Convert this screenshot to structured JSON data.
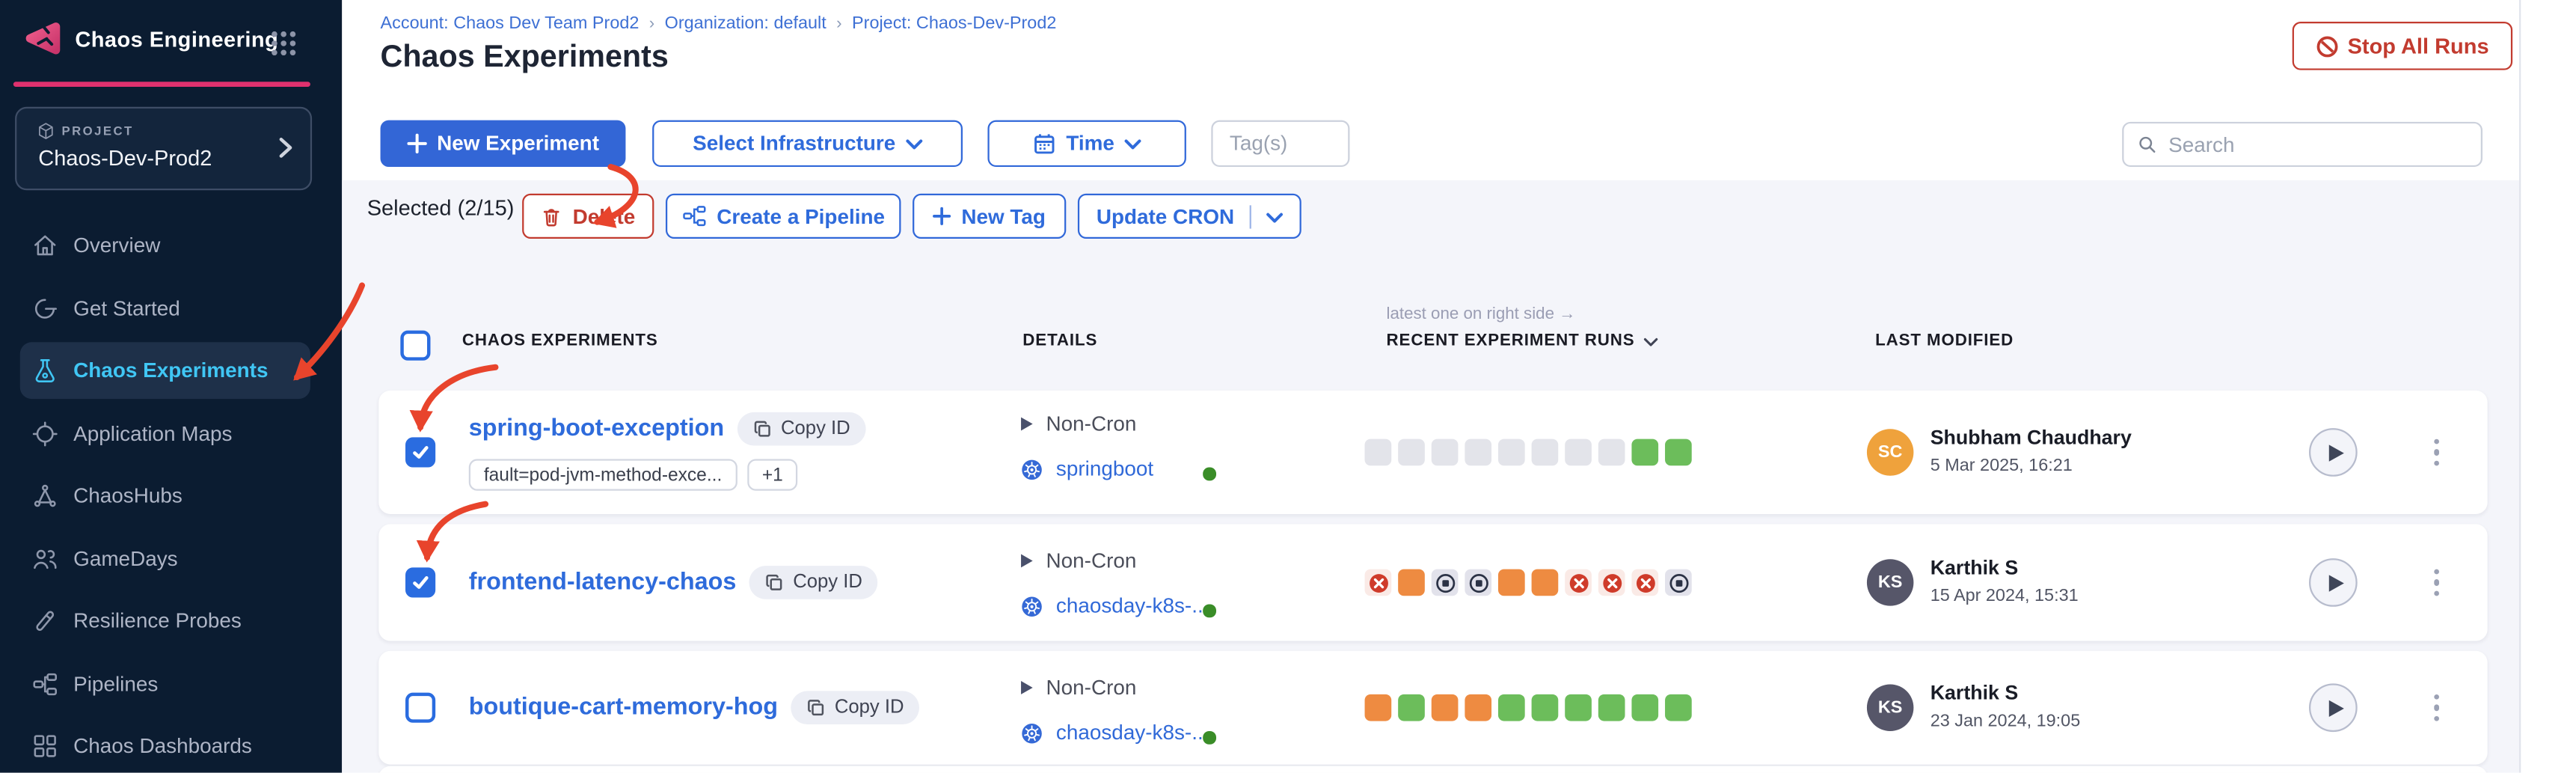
{
  "colors": {
    "accent": "#3366d6",
    "danger": "#c23b2f",
    "pink": "#e0316e",
    "run-green": "#6cbd5b",
    "run-orange": "#ee8b41",
    "annotation": "#e8442c"
  },
  "brand": {
    "app_name": "Chaos Engineering",
    "project_label": "PROJECT",
    "project_name": "Chaos-Dev-Prod2"
  },
  "sidebar": {
    "items": [
      {
        "label": "Overview"
      },
      {
        "label": "Get Started"
      },
      {
        "label": "Chaos Experiments",
        "selected": true
      },
      {
        "label": "Application Maps"
      },
      {
        "label": "ChaosHubs"
      },
      {
        "label": "GameDays"
      },
      {
        "label": "Resilience Probes"
      },
      {
        "label": "Pipelines"
      },
      {
        "label": "Chaos Dashboards"
      }
    ]
  },
  "breadcrumb": {
    "sep": "›",
    "parts": [
      {
        "label": "Account: Chaos Dev Team Prod2"
      },
      {
        "label": "Organization: default"
      },
      {
        "label": "Project: Chaos-Dev-Prod2"
      }
    ]
  },
  "header": {
    "title": "Chaos Experiments",
    "stop_all_label": "Stop All Runs"
  },
  "toolbar": {
    "new_experiment": "New Experiment",
    "select_infrastructure": "Select Infrastructure",
    "time": "Time",
    "tags_placeholder": "Tag(s)",
    "search_placeholder": "Search"
  },
  "selection": {
    "label": "Selected (2/15)",
    "delete": "Delete",
    "create_pipeline": "Create a Pipeline",
    "new_tag": "New Tag",
    "update_cron": "Update CRON"
  },
  "table": {
    "note": "latest one on right side →",
    "col_experiments": "CHAOS EXPERIMENTS",
    "col_details": "DETAILS",
    "col_runs": "RECENT EXPERIMENT RUNS",
    "col_modified": "LAST MODIFIED"
  },
  "rows": [
    {
      "name": "spring-boot-exception",
      "copy_label": "Copy ID",
      "checked": true,
      "tags": [
        "fault=pod-jvm-method-exce...",
        "+1"
      ],
      "cron": "Non-Cron",
      "infra": "springboot",
      "runs": [
        "gray",
        "gray",
        "gray",
        "gray",
        "gray",
        "gray",
        "gray",
        "gray",
        "green",
        "green"
      ],
      "avatar": "SC",
      "avatar_color": "#efa23c",
      "user": "Shubham Chaudhary",
      "date": "5 Mar 2025, 16:21"
    },
    {
      "name": "frontend-latency-chaos",
      "copy_label": "Copy ID",
      "checked": true,
      "tags": [],
      "cron": "Non-Cron",
      "infra": "chaosday-k8s-...",
      "runs": [
        "failed",
        "orange",
        "stopped",
        "stopped",
        "orange",
        "orange",
        "failed",
        "failed",
        "failed",
        "stopped"
      ],
      "avatar": "KS",
      "avatar_color": "#565669",
      "user": "Karthik S",
      "date": "15 Apr 2024, 15:31"
    },
    {
      "name": "boutique-cart-memory-hog",
      "copy_label": "Copy ID",
      "checked": false,
      "tags": [],
      "cron": "Non-Cron",
      "infra": "chaosday-k8s-...",
      "runs": [
        "orange",
        "green",
        "orange",
        "orange",
        "green",
        "green",
        "green",
        "green",
        "green",
        "green"
      ],
      "avatar": "KS",
      "avatar_color": "#565669",
      "user": "Karthik S",
      "date": "23 Jan 2024, 19:05"
    }
  ]
}
